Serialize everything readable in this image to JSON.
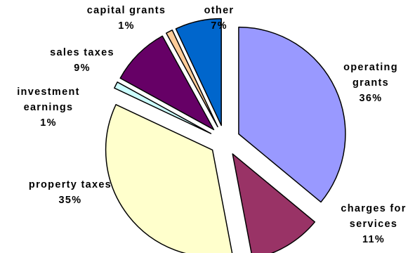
{
  "chart_data": {
    "type": "pie",
    "title": "",
    "slices": [
      {
        "label": [
          "operating",
          "grants"
        ],
        "value": 36,
        "pct_text": "36%",
        "color": "#9999ff"
      },
      {
        "label": [
          "charges for",
          "services"
        ],
        "value": 11,
        "pct_text": "11%",
        "color": "#993366"
      },
      {
        "label": [
          "property taxes"
        ],
        "value": 35,
        "pct_text": "35%",
        "color": "#ffffcc"
      },
      {
        "label": [
          "investment",
          "earnings"
        ],
        "value": 1,
        "pct_text": "1%",
        "color": "#ccffff"
      },
      {
        "label": [
          "sales taxes"
        ],
        "value": 9,
        "pct_text": "9%",
        "color": "#660066"
      },
      {
        "label": [
          "capital grants"
        ],
        "value": 1,
        "pct_text": "1%",
        "color": "#ffcc99"
      },
      {
        "label": [
          "other"
        ],
        "value": 7,
        "pct_text": "7%",
        "color": "#0066cc"
      }
    ],
    "exploded": true,
    "legend": "none",
    "data_labels": "category name and percentage outside slices"
  }
}
